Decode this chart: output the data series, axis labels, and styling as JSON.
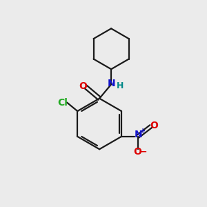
{
  "bg_color": "#ebebeb",
  "bond_color": "#1a1a1a",
  "bond_width": 1.6,
  "atom_colors": {
    "O": "#dd0000",
    "N_amide": "#1111cc",
    "H": "#008888",
    "Cl": "#22aa22",
    "N_nitro": "#1111cc",
    "O_nitro": "#dd0000"
  },
  "font_size_atoms": 10,
  "font_size_H": 9,
  "font_size_charge": 10
}
